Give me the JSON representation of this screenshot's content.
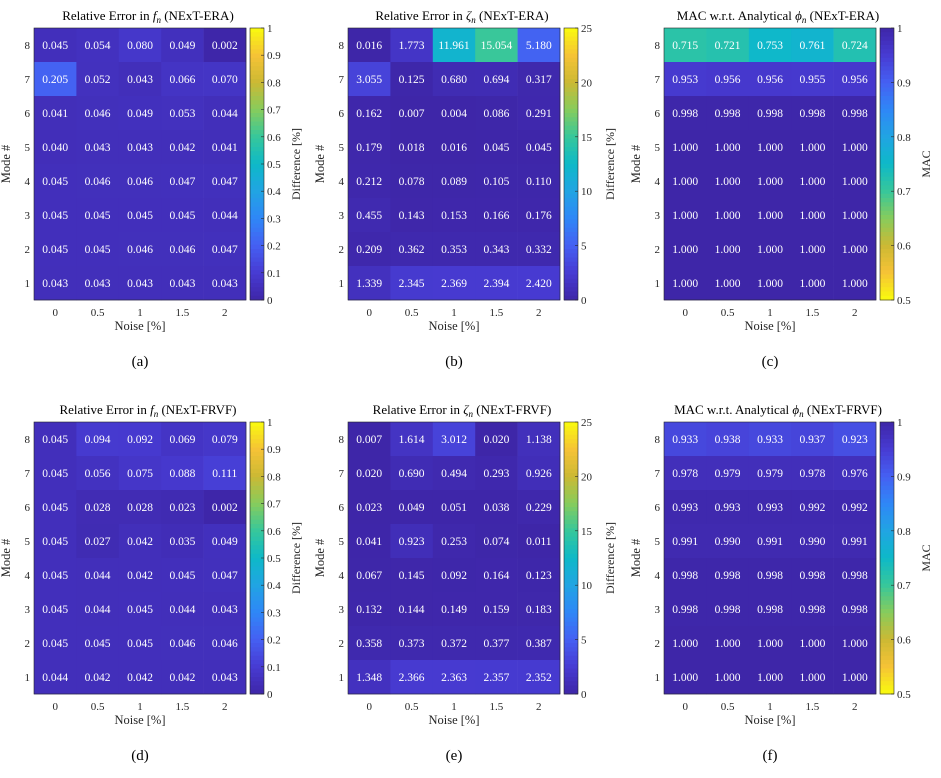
{
  "chart_data": [
    {
      "type": "heatmap",
      "title_prefix": "Relative Error in ",
      "title_sym": "f",
      "title_sub": "n",
      "title_suffix": " (NExT-ERA)",
      "xlabel": "Noise [%]",
      "ylabel": "Mode #",
      "colorbar_label": "Difference [%]",
      "x": [
        "0",
        "0.5",
        "1",
        "1.5",
        "2"
      ],
      "y": [
        "8",
        "7",
        "6",
        "5",
        "4",
        "3",
        "2",
        "1"
      ],
      "values": [
        [
          "0.045",
          "0.054",
          "0.080",
          "0.049",
          "0.002"
        ],
        [
          "0.205",
          "0.052",
          "0.043",
          "0.066",
          "0.070"
        ],
        [
          "0.041",
          "0.046",
          "0.049",
          "0.053",
          "0.044"
        ],
        [
          "0.040",
          "0.043",
          "0.043",
          "0.042",
          "0.041"
        ],
        [
          "0.045",
          "0.046",
          "0.046",
          "0.047",
          "0.047"
        ],
        [
          "0.045",
          "0.045",
          "0.045",
          "0.045",
          "0.044"
        ],
        [
          "0.045",
          "0.045",
          "0.046",
          "0.046",
          "0.047"
        ],
        [
          "0.043",
          "0.043",
          "0.043",
          "0.043",
          "0.043"
        ]
      ],
      "clim": [
        0,
        1
      ],
      "colorbar_ticks": [
        "0",
        "0.1",
        "0.2",
        "0.3",
        "0.4",
        "0.5",
        "0.6",
        "0.7",
        "0.8",
        "0.9",
        "1"
      ],
      "colormap": "parula",
      "reversed": false,
      "panel_label": "(a)"
    },
    {
      "type": "heatmap",
      "title_prefix": "Relative Error in ",
      "title_sym": "ζ",
      "title_sub": "n",
      "title_suffix": " (NExT-ERA)",
      "xlabel": "Noise [%]",
      "ylabel": "Mode #",
      "colorbar_label": "Difference [%]",
      "x": [
        "0",
        "0.5",
        "1",
        "1.5",
        "2"
      ],
      "y": [
        "8",
        "7",
        "6",
        "5",
        "4",
        "3",
        "2",
        "1"
      ],
      "values": [
        [
          "0.016",
          "1.773",
          "11.961",
          "15.054",
          "5.180"
        ],
        [
          "3.055",
          "0.125",
          "0.680",
          "0.694",
          "0.317"
        ],
        [
          "0.162",
          "0.007",
          "0.004",
          "0.086",
          "0.291"
        ],
        [
          "0.179",
          "0.018",
          "0.016",
          "0.045",
          "0.045"
        ],
        [
          "0.212",
          "0.078",
          "0.089",
          "0.105",
          "0.110"
        ],
        [
          "0.455",
          "0.143",
          "0.153",
          "0.166",
          "0.176"
        ],
        [
          "0.209",
          "0.362",
          "0.353",
          "0.343",
          "0.332"
        ],
        [
          "1.339",
          "2.345",
          "2.369",
          "2.394",
          "2.420"
        ]
      ],
      "clim": [
        0,
        25
      ],
      "colorbar_ticks": [
        "0",
        "5",
        "10",
        "15",
        "20",
        "25"
      ],
      "colormap": "parula",
      "reversed": false,
      "panel_label": "(b)"
    },
    {
      "type": "heatmap",
      "title_prefix": "MAC w.r.t. Analytical ",
      "title_sym": "ϕ",
      "title_sub": "n",
      "title_suffix": " (NExT-ERA)",
      "xlabel": "Noise [%]",
      "ylabel": "Mode #",
      "colorbar_label": "MAC",
      "x": [
        "0",
        "0.5",
        "1",
        "1.5",
        "2"
      ],
      "y": [
        "8",
        "7",
        "6",
        "5",
        "4",
        "3",
        "2",
        "1"
      ],
      "values": [
        [
          "0.715",
          "0.721",
          "0.753",
          "0.761",
          "0.724"
        ],
        [
          "0.953",
          "0.956",
          "0.956",
          "0.955",
          "0.956"
        ],
        [
          "0.998",
          "0.998",
          "0.998",
          "0.998",
          "0.998"
        ],
        [
          "1.000",
          "1.000",
          "1.000",
          "1.000",
          "1.000"
        ],
        [
          "1.000",
          "1.000",
          "1.000",
          "1.000",
          "1.000"
        ],
        [
          "1.000",
          "1.000",
          "1.000",
          "1.000",
          "1.000"
        ],
        [
          "1.000",
          "1.000",
          "1.000",
          "1.000",
          "1.000"
        ],
        [
          "1.000",
          "1.000",
          "1.000",
          "1.000",
          "1.000"
        ]
      ],
      "clim": [
        0.5,
        1
      ],
      "colorbar_ticks": [
        "0.5",
        "0.6",
        "0.7",
        "0.8",
        "0.9",
        "1"
      ],
      "colormap": "parula",
      "reversed": true,
      "panel_label": "(c)"
    },
    {
      "type": "heatmap",
      "title_prefix": "Relative Error in ",
      "title_sym": "f",
      "title_sub": "n",
      "title_suffix": " (NExT-FRVF)",
      "xlabel": "Noise [%]",
      "ylabel": "Mode #",
      "colorbar_label": "Difference [%]",
      "x": [
        "0",
        "0.5",
        "1",
        "1.5",
        "2"
      ],
      "y": [
        "8",
        "7",
        "6",
        "5",
        "4",
        "3",
        "2",
        "1"
      ],
      "values": [
        [
          "0.045",
          "0.094",
          "0.092",
          "0.069",
          "0.079"
        ],
        [
          "0.045",
          "0.056",
          "0.075",
          "0.088",
          "0.111"
        ],
        [
          "0.045",
          "0.028",
          "0.028",
          "0.023",
          "0.002"
        ],
        [
          "0.045",
          "0.027",
          "0.042",
          "0.035",
          "0.049"
        ],
        [
          "0.045",
          "0.044",
          "0.042",
          "0.045",
          "0.047"
        ],
        [
          "0.045",
          "0.044",
          "0.045",
          "0.044",
          "0.043"
        ],
        [
          "0.045",
          "0.045",
          "0.045",
          "0.046",
          "0.046"
        ],
        [
          "0.044",
          "0.042",
          "0.042",
          "0.042",
          "0.043"
        ]
      ],
      "clim": [
        0,
        1
      ],
      "colorbar_ticks": [
        "0",
        "0.1",
        "0.2",
        "0.3",
        "0.4",
        "0.5",
        "0.6",
        "0.7",
        "0.8",
        "0.9",
        "1"
      ],
      "colormap": "parula",
      "reversed": false,
      "panel_label": "(d)"
    },
    {
      "type": "heatmap",
      "title_prefix": "Relative Error in ",
      "title_sym": "ζ",
      "title_sub": "n",
      "title_suffix": " (NExT-FRVF)",
      "xlabel": "Noise [%]",
      "ylabel": "Mode #",
      "colorbar_label": "Difference [%]",
      "x": [
        "0",
        "0.5",
        "1",
        "1.5",
        "2"
      ],
      "y": [
        "8",
        "7",
        "6",
        "5",
        "4",
        "3",
        "2",
        "1"
      ],
      "values": [
        [
          "0.007",
          "1.614",
          "3.012",
          "0.020",
          "1.138"
        ],
        [
          "0.020",
          "0.690",
          "0.494",
          "0.293",
          "0.926"
        ],
        [
          "0.023",
          "0.049",
          "0.051",
          "0.038",
          "0.229"
        ],
        [
          "0.041",
          "0.923",
          "0.253",
          "0.074",
          "0.011"
        ],
        [
          "0.067",
          "0.145",
          "0.092",
          "0.164",
          "0.123"
        ],
        [
          "0.132",
          "0.144",
          "0.149",
          "0.159",
          "0.183"
        ],
        [
          "0.358",
          "0.373",
          "0.372",
          "0.377",
          "0.387"
        ],
        [
          "1.348",
          "2.366",
          "2.363",
          "2.357",
          "2.352"
        ]
      ],
      "clim": [
        0,
        25
      ],
      "colorbar_ticks": [
        "0",
        "5",
        "10",
        "15",
        "20",
        "25"
      ],
      "colormap": "parula",
      "reversed": false,
      "panel_label": "(e)"
    },
    {
      "type": "heatmap",
      "title_prefix": "MAC w.r.t. Analytical ",
      "title_sym": "ϕ",
      "title_sub": "n",
      "title_suffix": " (NExT-FRVF)",
      "xlabel": "Noise [%]",
      "ylabel": "Mode #",
      "colorbar_label": "MAC",
      "x": [
        "0",
        "0.5",
        "1",
        "1.5",
        "2"
      ],
      "y": [
        "8",
        "7",
        "6",
        "5",
        "4",
        "3",
        "2",
        "1"
      ],
      "values": [
        [
          "0.933",
          "0.938",
          "0.933",
          "0.937",
          "0.923"
        ],
        [
          "0.978",
          "0.979",
          "0.979",
          "0.978",
          "0.976"
        ],
        [
          "0.993",
          "0.993",
          "0.993",
          "0.992",
          "0.992"
        ],
        [
          "0.991",
          "0.990",
          "0.991",
          "0.990",
          "0.991"
        ],
        [
          "0.998",
          "0.998",
          "0.998",
          "0.998",
          "0.998"
        ],
        [
          "0.998",
          "0.998",
          "0.998",
          "0.998",
          "0.998"
        ],
        [
          "1.000",
          "1.000",
          "1.000",
          "1.000",
          "1.000"
        ],
        [
          "1.000",
          "1.000",
          "1.000",
          "1.000",
          "1.000"
        ]
      ],
      "clim": [
        0.5,
        1
      ],
      "colorbar_ticks": [
        "0.5",
        "0.6",
        "0.7",
        "0.8",
        "0.9",
        "1"
      ],
      "colormap": "parula",
      "reversed": true,
      "panel_label": "(f)"
    }
  ]
}
